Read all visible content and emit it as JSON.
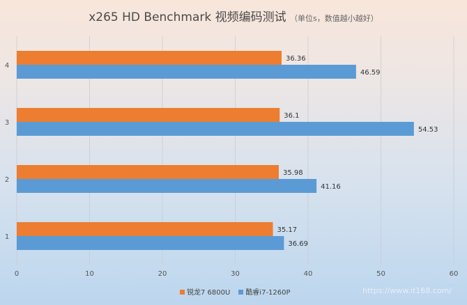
{
  "chart_data": {
    "type": "bar",
    "orientation": "horizontal",
    "title": "x265 HD Benchmark 视频编码测试",
    "subtitle": "（单位s，数值越小越好）",
    "categories": [
      "1",
      "2",
      "3",
      "4"
    ],
    "series": [
      {
        "name": "锐龙7 6800U",
        "color": "#ed7d31",
        "values": [
          35.17,
          35.98,
          36.1,
          36.36
        ]
      },
      {
        "name": "酷睿i7-1260P",
        "color": "#5b9bd5",
        "values": [
          36.69,
          41.16,
          54.53,
          46.59
        ]
      }
    ],
    "xlim": [
      0,
      60
    ],
    "xticks": [
      0,
      10,
      20,
      30,
      40,
      50,
      60
    ],
    "grid": true,
    "legend": "bottom"
  },
  "watermark": "https://www.it168.com/"
}
